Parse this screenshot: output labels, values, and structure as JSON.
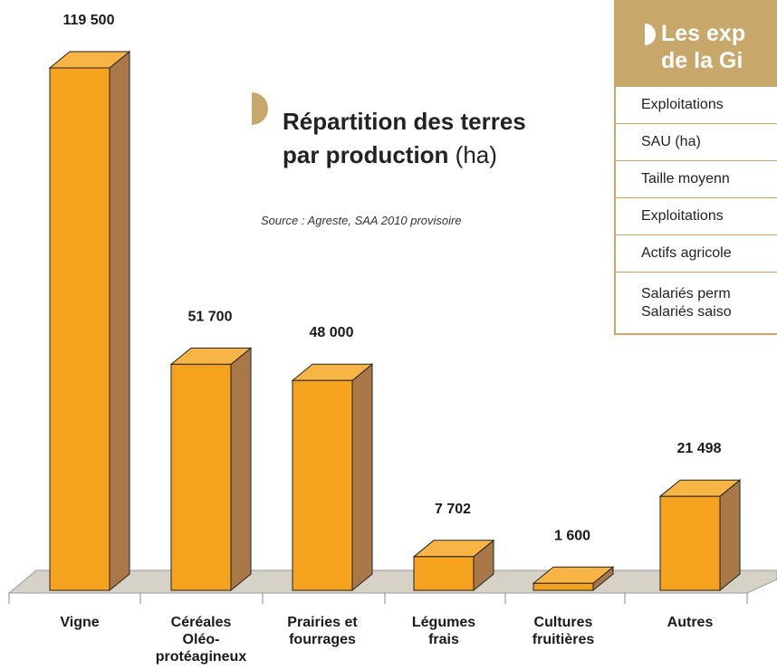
{
  "chart_data": {
    "type": "bar3d",
    "title": "Répartition des terres",
    "title_line2": "par production",
    "unit": "(ha)",
    "subtitle": "Source : Agreste, SAA 2010 provisoire",
    "categories": [
      "Vigne",
      "Céréales\nOléo-\nprotéagineux",
      "Prairies et\nfourrages",
      "Légumes\nfrais",
      "Cultures\nfruitières",
      "Autres"
    ],
    "values": [
      119500,
      51700,
      48000,
      7702,
      1600,
      21498
    ],
    "value_labels": [
      "119 500",
      "51 700",
      "48 000",
      "7 702",
      "1 600",
      "21 498"
    ],
    "color": "#f5a21f"
  },
  "panel": {
    "header": "Les exp\nde la Gi",
    "rows": [
      "Exploitations",
      "SAU (ha)",
      "Taille moyenn",
      "Exploitations",
      "Actifs agricole",
      "Salariés perm\nSalariés saiso"
    ]
  }
}
